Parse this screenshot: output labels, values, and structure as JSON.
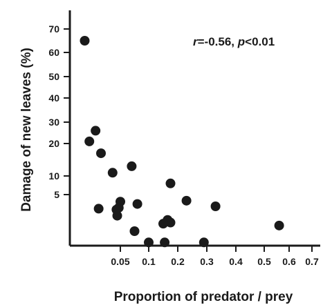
{
  "chart_data": {
    "type": "scatter",
    "xlabel": "Proportion of predator / prey",
    "ylabel": "Damage of new leaves (%)",
    "x_ticks": [
      "0.05",
      "0.1",
      "0.2",
      "0.3",
      "0.4",
      "0.5",
      "0.6",
      "0.7"
    ],
    "y_ticks": [
      "5",
      "10",
      "20",
      "30",
      "40",
      "50",
      "60",
      "70"
    ],
    "annotation": {
      "r_symbol": "r",
      "r_value": "=-0.56, ",
      "p_symbol": "p",
      "p_value": "<0.01"
    },
    "points": [
      {
        "x": 0.004,
        "y": 65
      },
      {
        "x": 0.018,
        "y": 26
      },
      {
        "x": 0.01,
        "y": 21
      },
      {
        "x": 0.025,
        "y": 17
      },
      {
        "x": 0.04,
        "y": 11
      },
      {
        "x": 0.07,
        "y": 13
      },
      {
        "x": 0.175,
        "y": 8
      },
      {
        "x": 0.05,
        "y": 3.5
      },
      {
        "x": 0.08,
        "y": 3.0
      },
      {
        "x": 0.23,
        "y": 3.7
      },
      {
        "x": 0.33,
        "y": 2.5
      },
      {
        "x": 0.022,
        "y": 2.0
      },
      {
        "x": 0.048,
        "y": 2.2
      },
      {
        "x": 0.045,
        "y": 1.8
      },
      {
        "x": 0.046,
        "y": 0.5
      },
      {
        "x": 0.165,
        "y": -0.5
      },
      {
        "x": 0.175,
        "y": -1.2
      },
      {
        "x": 0.15,
        "y": -1.5
      },
      {
        "x": 0.56,
        "y": -2.0
      },
      {
        "x": 0.075,
        "y": -3.5
      },
      {
        "x": 0.1,
        "y": -6.5
      },
      {
        "x": 0.155,
        "y": -6.5
      },
      {
        "x": 0.29,
        "y": -6.5
      }
    ],
    "colors": {
      "marker": "#1a1a1a",
      "axis": "#1a1a1a"
    }
  }
}
